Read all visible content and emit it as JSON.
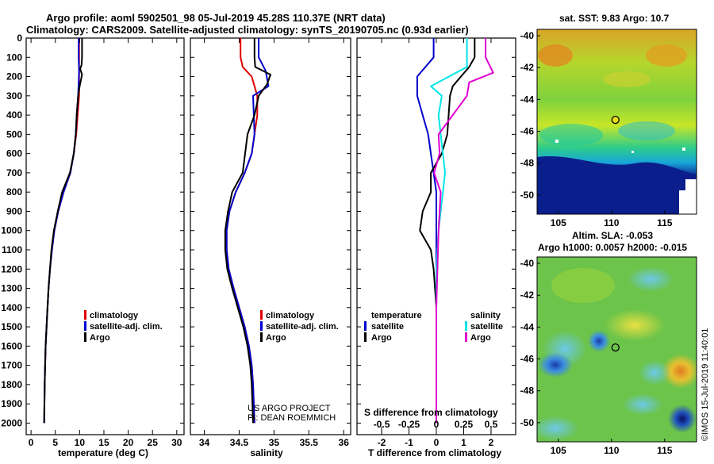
{
  "header": {
    "title_line1": "Argo profile: aoml 5902501_98 05-Jul-2019 45.28S 110.37E (NRT data)",
    "title_line2": "Climatology: CARS2009. Satellite-adjusted climatology: synTS_20190705.nc (0.93d earlier)"
  },
  "colors": {
    "climatology": "#e00000",
    "satellite": "#0000cc",
    "argo": "#000000",
    "sat_salinity": "#00e5e5",
    "argo_salinity": "#e000d0"
  },
  "depth_ticks": [
    "0",
    "100",
    "200",
    "300",
    "400",
    "500",
    "600",
    "700",
    "800",
    "900",
    "1000",
    "1100",
    "1200",
    "1300",
    "1400",
    "1500",
    "1600",
    "1700",
    "1800",
    "1900",
    "2000"
  ],
  "legends": {
    "temperature": [
      "climatology",
      "satellite-adj. clim.",
      "Argo"
    ],
    "salinity": [
      "climatology",
      "satellite-adj. clim.",
      "Argo"
    ],
    "diff_temperature_title": "temperature",
    "diff_salinity_title": "salinity",
    "diff_temperature": [
      "satellite",
      "Argo"
    ],
    "diff_salinity": [
      "satellite",
      "Argo"
    ]
  },
  "credits": {
    "line1": "US ARGO PROJECT",
    "line2": "PI: DEAN ROEMMICH"
  },
  "map_panels": {
    "sst_title": "sat. SST: 9.83 Argo: 10.7",
    "sla_title1": "Altim. SLA: -0.053",
    "sla_title2": "Argo h1000: 0.0057 h2000: -0.015",
    "lat_ticks": [
      "-40",
      "-42",
      "-44",
      "-46",
      "-48",
      "-50"
    ],
    "lon_ticks": [
      "105",
      "110",
      "115"
    ],
    "float_marker": {
      "lon": 110.37,
      "lat": -45.28
    },
    "timestamp": "©IMOS 15-Jul-2019 11:40:01"
  },
  "chart_data": [
    {
      "type": "line",
      "title": "",
      "xlabel": "temperature (deg C)",
      "ylabel": "",
      "xlim": [
        -1,
        31.5
      ],
      "ylim": [
        2060,
        0
      ],
      "xticks": [
        "0",
        "5",
        "10",
        "15",
        "20",
        "25",
        "30"
      ],
      "series": [
        {
          "name": "climatology",
          "x": [
            9.9,
            9.9,
            9.9,
            9.9,
            9.9,
            9.6,
            9.3,
            8.8,
            8.1,
            6.7,
            5.6,
            4.8,
            4.3,
            3.9,
            3.6,
            3.4,
            3.2,
            3.0,
            2.9,
            2.8,
            2.7
          ],
          "y": [
            0,
            100,
            150,
            200,
            300,
            400,
            500,
            600,
            700,
            800,
            900,
            1000,
            1100,
            1200,
            1300,
            1400,
            1500,
            1600,
            1700,
            1800,
            2000
          ]
        },
        {
          "name": "satellite-adj. clim.",
          "x": [
            9.8,
            9.8,
            9.9,
            9.7,
            9.4,
            9.2,
            8.8,
            8.1,
            6.7,
            5.6,
            4.8,
            4.3,
            3.9,
            3.6,
            3.4,
            3.2,
            3.0,
            2.9,
            2.8,
            2.7
          ],
          "y": [
            0,
            100,
            170,
            300,
            400,
            500,
            600,
            700,
            800,
            900,
            1000,
            1100,
            1200,
            1300,
            1400,
            1500,
            1600,
            1700,
            1800,
            2000
          ]
        },
        {
          "name": "Argo",
          "x": [
            10.5,
            10.5,
            10.4,
            10.1,
            10.5,
            10.0,
            9.7,
            9.4,
            9.2,
            8.8,
            8.0,
            6.4,
            5.5,
            4.7,
            4.2,
            3.9,
            3.6,
            3.4,
            3.2,
            3.0,
            2.9,
            2.8,
            2.7
          ],
          "y": [
            0,
            100,
            140,
            160,
            190,
            250,
            300,
            400,
            500,
            600,
            700,
            800,
            900,
            1000,
            1100,
            1200,
            1300,
            1400,
            1500,
            1600,
            1700,
            1800,
            2000
          ]
        }
      ]
    },
    {
      "type": "line",
      "title": "",
      "xlabel": "salinity",
      "ylabel": "",
      "xlim": [
        33.8,
        36.1
      ],
      "ylim": [
        2060,
        0
      ],
      "xticks": [
        "34",
        "34.5",
        "35",
        "35.5",
        "36"
      ],
      "series": [
        {
          "name": "climatology",
          "x": [
            34.52,
            34.52,
            34.55,
            34.68,
            34.76,
            34.76,
            34.72,
            34.68,
            34.58,
            34.45,
            34.36,
            34.32,
            34.32,
            34.35,
            34.42,
            34.5,
            34.58,
            34.64,
            34.68,
            34.7,
            34.72
          ],
          "y": [
            0,
            100,
            150,
            200,
            300,
            400,
            500,
            600,
            700,
            800,
            900,
            1000,
            1100,
            1200,
            1300,
            1400,
            1500,
            1600,
            1700,
            1800,
            2000
          ]
        },
        {
          "name": "satellite-adj. clim.",
          "x": [
            34.78,
            34.78,
            34.88,
            34.92,
            34.7,
            34.72,
            34.68,
            34.58,
            34.45,
            34.36,
            34.32,
            34.32,
            34.35,
            34.42,
            34.5,
            34.58,
            34.64,
            34.68,
            34.7,
            34.72
          ],
          "y": [
            0,
            100,
            170,
            250,
            300,
            500,
            600,
            700,
            800,
            900,
            1000,
            1100,
            1200,
            1300,
            1400,
            1500,
            1600,
            1700,
            1800,
            2000
          ]
        },
        {
          "name": "Argo",
          "x": [
            34.72,
            34.72,
            34.73,
            34.95,
            34.9,
            34.78,
            34.72,
            34.62,
            34.55,
            34.4,
            34.34,
            34.3,
            34.3,
            34.33,
            34.4,
            34.48,
            34.56,
            34.62,
            34.66,
            34.68,
            34.7
          ],
          "y": [
            0,
            100,
            150,
            190,
            240,
            300,
            400,
            500,
            700,
            800,
            900,
            1000,
            1100,
            1200,
            1300,
            1400,
            1500,
            1600,
            1700,
            1800,
            2000
          ]
        }
      ]
    },
    {
      "type": "line",
      "title": "",
      "xlabel": "T difference from climatology",
      "ylabel": "",
      "xlim": [
        -2.9,
        2.9
      ],
      "ylim": [
        2060,
        0
      ],
      "xticks": [
        "-2",
        "-1",
        "0",
        "1",
        "2"
      ],
      "secondary_xlabel": "S difference from climatology",
      "secondary_xticks": [
        "-0.5",
        "-0.25",
        "0",
        "0.25",
        "0.5"
      ],
      "series": [
        {
          "name": "temperature satellite",
          "x": [
            -0.1,
            -0.1,
            -0.7,
            -0.7,
            -0.5,
            -0.3,
            -0.2,
            -0.1,
            0.0,
            0.0,
            0.0,
            0.0,
            0.0,
            0.0,
            0.0,
            0.0,
            0.0,
            0.0,
            0.0,
            0.0
          ],
          "y": [
            0,
            100,
            200,
            300,
            400,
            500,
            600,
            700,
            800,
            900,
            1000,
            1100,
            1200,
            1300,
            1400,
            1500,
            1600,
            1700,
            1800,
            2000
          ]
        },
        {
          "name": "temperature Argo",
          "x": [
            1.4,
            1.4,
            1.2,
            0.9,
            0.6,
            0.5,
            0.4,
            0.2,
            -0.2,
            -0.2,
            -0.5,
            -0.6,
            -0.2,
            -0.1,
            -0.05,
            0.0,
            0.0,
            0.0,
            0.0,
            0.0,
            0.0
          ],
          "y": [
            0,
            100,
            150,
            200,
            250,
            300,
            500,
            600,
            700,
            800,
            900,
            1000,
            1100,
            1200,
            1300,
            1400,
            1500,
            1600,
            1700,
            1800,
            2000
          ]
        },
        {
          "name": "salinity satellite",
          "x": [
            0.28,
            0.28,
            -0.05,
            0.05,
            0.02,
            0.04,
            0.06,
            0.08,
            0.06,
            0.04,
            0.02,
            0.01,
            0.0,
            0.0,
            0.0,
            0.0,
            0.0,
            0.0,
            0.0
          ],
          "y": [
            0,
            150,
            250,
            300,
            400,
            500,
            600,
            700,
            800,
            900,
            1000,
            1100,
            1200,
            1300,
            1400,
            1500,
            1600,
            1700,
            2000
          ]
        },
        {
          "name": "salinity Argo",
          "x": [
            0.45,
            0.45,
            0.52,
            0.3,
            0.28,
            0.02,
            0.03,
            -0.02,
            0.04,
            0.02,
            0.01,
            0.0,
            0.0,
            0.0
          ],
          "y": [
            0,
            100,
            180,
            230,
            300,
            500,
            600,
            700,
            800,
            1000,
            1200,
            1400,
            1600,
            2000
          ]
        }
      ]
    }
  ]
}
